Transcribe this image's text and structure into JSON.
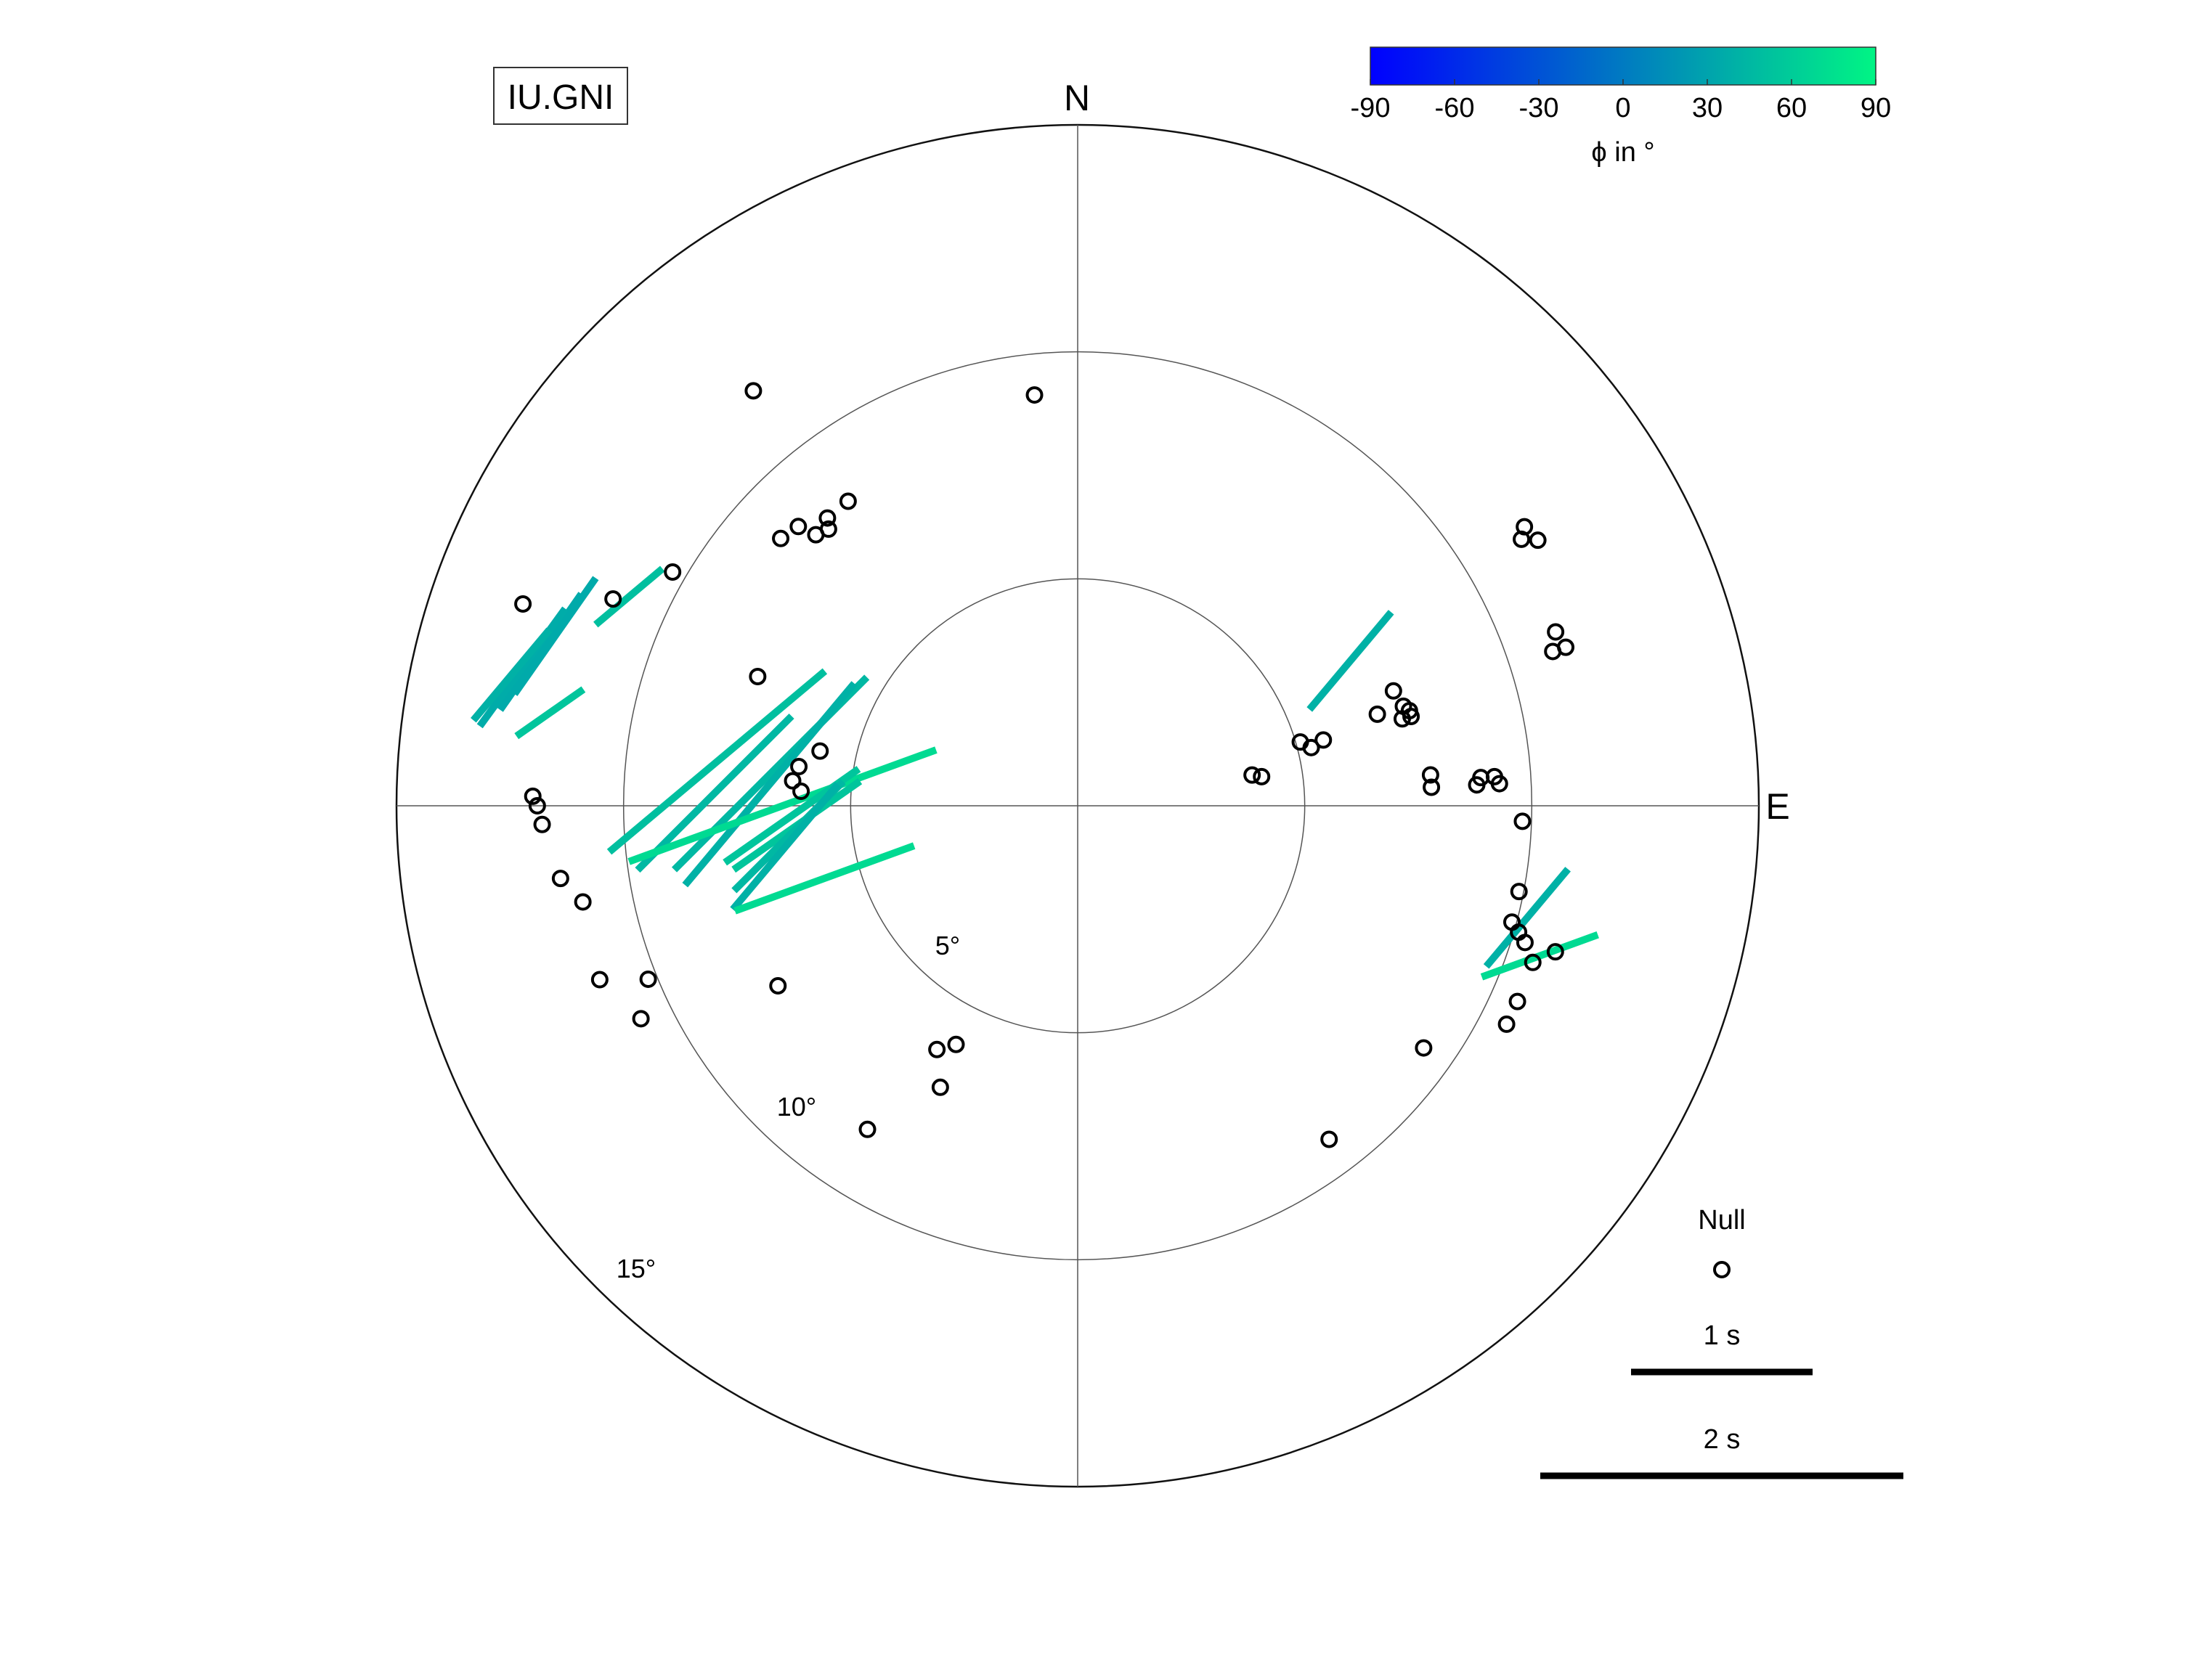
{
  "chart_data": {
    "type": "scatter",
    "station": "IU.GNI",
    "directions": {
      "north": "N",
      "east": "E"
    },
    "rings": [
      {
        "value": 5,
        "label": "5°"
      },
      {
        "value": 10,
        "label": "10°"
      },
      {
        "value": 15,
        "label": "15°"
      }
    ],
    "max_radius": 15,
    "colorbar": {
      "label": "ϕ in °",
      "range": [
        -90,
        90
      ],
      "ticks": [
        "-90",
        "-60",
        "-30",
        "0",
        "30",
        "60",
        "90"
      ],
      "color_low": "#0000ff",
      "color_high": "#00f584"
    },
    "legend": {
      "null_label": "Null",
      "scale_1s_label": "1 s",
      "scale_2s_label": "2 s",
      "seconds": [
        1,
        2
      ]
    },
    "splits_columns": [
      "backazimuth_deg",
      "incidence_deg",
      "phi_deg",
      "delay_s"
    ],
    "splits": [
      [
        295,
        10.9,
        50,
        0.48
      ],
      [
        288,
        12.1,
        35,
        0.78
      ],
      [
        286,
        12.3,
        35,
        0.78
      ],
      [
        284,
        12.6,
        36,
        0.8
      ],
      [
        283,
        12.8,
        40,
        0.65
      ],
      [
        280,
        11.8,
        55,
        0.45
      ],
      [
        277,
        8.0,
        50,
        1.55
      ],
      [
        276,
        6.8,
        45,
        1.5
      ],
      [
        274,
        6.8,
        40,
        1.45
      ],
      [
        272,
        8.0,
        45,
        1.2
      ],
      [
        270,
        6.5,
        70,
        1.8
      ],
      [
        268,
        6.3,
        55,
        0.9
      ],
      [
        266,
        6.2,
        55,
        0.85
      ],
      [
        264,
        6.4,
        45,
        0.85
      ],
      [
        262,
        6.5,
        40,
        0.9
      ],
      [
        254,
        5.8,
        70,
        1.05
      ],
      [
        62,
        6.8,
        40,
        0.7
      ],
      [
        104,
        10.2,
        40,
        0.7
      ],
      [
        108,
        10.7,
        70,
        0.68
      ]
    ],
    "nulls_columns": [
      "backazimuth_deg",
      "incidence_deg"
    ],
    "nulls": [
      [
        322,
        11.6
      ],
      [
        354,
        9.1
      ],
      [
        290,
        13.0
      ],
      [
        294,
        11.2
      ],
      [
        300,
        10.3
      ],
      [
        312,
        8.8
      ],
      [
        315,
        8.7
      ],
      [
        316,
        8.3
      ],
      [
        318,
        8.2
      ],
      [
        319,
        8.4
      ],
      [
        323,
        8.4
      ],
      [
        292,
        7.6
      ],
      [
        282,
        5.8
      ],
      [
        278,
        6.2
      ],
      [
        275,
        6.3
      ],
      [
        273,
        6.1
      ],
      [
        271,
        12.0
      ],
      [
        270,
        11.9
      ],
      [
        268,
        11.8
      ],
      [
        262,
        11.5
      ],
      [
        259,
        11.1
      ],
      [
        250,
        11.2
      ],
      [
        248,
        10.2
      ],
      [
        244,
        10.7
      ],
      [
        239,
        7.7
      ],
      [
        213,
        8.5
      ],
      [
        206,
        6.9
      ],
      [
        210,
        6.2
      ],
      [
        207,
        5.9
      ],
      [
        81,
        4.1
      ],
      [
        80,
        3.9
      ],
      [
        76,
        5.3
      ],
      [
        75,
        5.6
      ],
      [
        74,
        5.1
      ],
      [
        73,
        6.9
      ],
      [
        75,
        7.4
      ],
      [
        75,
        7.6
      ],
      [
        73,
        7.5
      ],
      [
        74,
        7.6
      ],
      [
        70,
        7.4
      ],
      [
        85,
        7.8
      ],
      [
        87,
        7.8
      ],
      [
        87,
        8.8
      ],
      [
        86,
        8.9
      ],
      [
        87,
        9.3
      ],
      [
        86,
        9.2
      ],
      [
        60,
        11.7
      ],
      [
        58,
        11.6
      ],
      [
        59,
        11.4
      ],
      [
        70,
        11.2
      ],
      [
        72,
        11.3
      ],
      [
        72,
        11.0
      ],
      [
        92,
        9.8
      ],
      [
        101,
        9.9
      ],
      [
        105,
        9.9
      ],
      [
        106,
        10.1
      ],
      [
        107,
        10.3
      ],
      [
        109,
        10.6
      ],
      [
        107,
        11.0
      ],
      [
        114,
        10.6
      ],
      [
        117,
        10.6
      ],
      [
        143,
        9.2
      ],
      [
        125,
        9.3
      ]
    ]
  }
}
